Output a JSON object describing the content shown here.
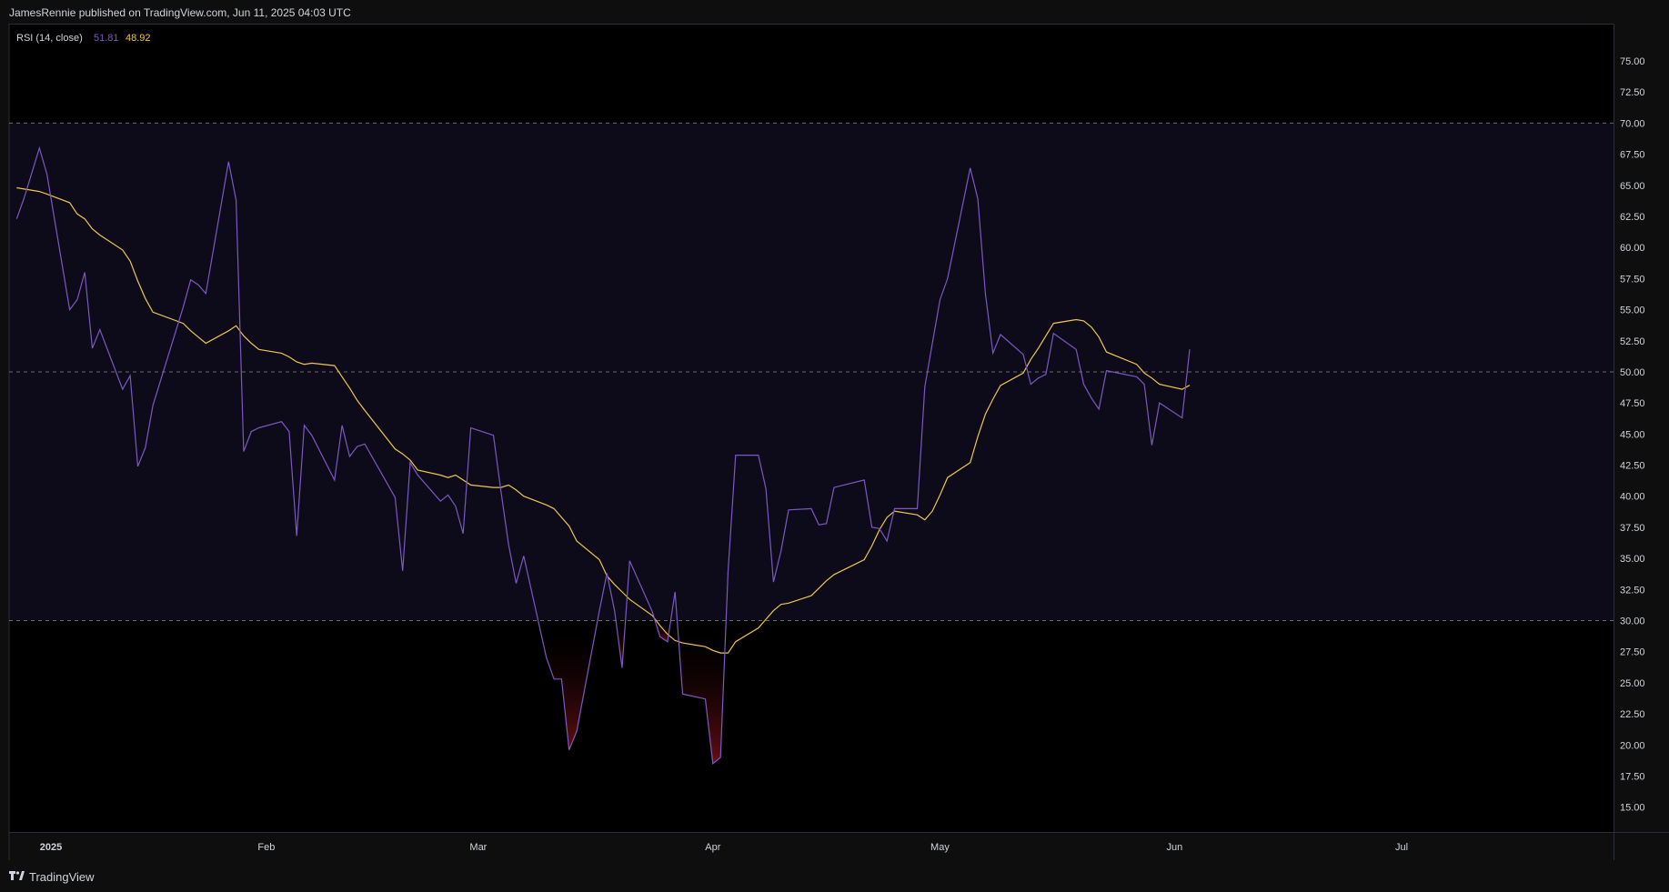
{
  "header": {
    "published": "JamesRennie published on TradingView.com, Jun 11, 2025 04:03 UTC"
  },
  "footer": {
    "brand": "TradingView"
  },
  "colors": {
    "background": "#000000",
    "band_fill": "#0d0b1a",
    "rsi_line": "#7e57c2",
    "ma_line": "#f0c64a",
    "oversold_fill": "#6e1016",
    "grid_dashed": "#6b6b6b",
    "text": "#d1d4dc"
  },
  "chart_data": {
    "type": "line",
    "indicator": "RSI (14, close)",
    "legend": {
      "label": "RSI (14, close)",
      "rsi_value": "51.81",
      "ma_value": "48.92"
    },
    "ylim": [
      13,
      78
    ],
    "y_ticks": [
      "75.00",
      "72.50",
      "70.00",
      "67.50",
      "65.00",
      "62.50",
      "60.00",
      "57.50",
      "55.00",
      "52.50",
      "50.00",
      "47.50",
      "45.00",
      "42.50",
      "40.00",
      "37.50",
      "35.00",
      "32.50",
      "30.00",
      "27.50",
      "25.00",
      "22.50",
      "20.00",
      "17.50",
      "15.00"
    ],
    "reference_lines": [
      70,
      50,
      30
    ],
    "x_ticks": [
      {
        "date": "2025-01-01",
        "label": "2025",
        "bold": true
      },
      {
        "date": "2025-02-01",
        "label": "Feb"
      },
      {
        "date": "2025-03-01",
        "label": "Mar"
      },
      {
        "date": "2025-04-01",
        "label": "Apr"
      },
      {
        "date": "2025-05-01",
        "label": "May"
      },
      {
        "date": "2025-06-01",
        "label": "Jun"
      },
      {
        "date": "2025-07-01",
        "label": "Jul"
      }
    ],
    "xlim": [
      "2024-12-29",
      "2025-07-29"
    ],
    "series": [
      {
        "name": "RSI",
        "points": [
          [
            "2024-12-30",
            62.3
          ],
          [
            "2024-12-31",
            64.0
          ],
          [
            "2025-01-02",
            68.0
          ],
          [
            "2025-01-03",
            65.9
          ],
          [
            "2025-01-06",
            55.0
          ],
          [
            "2025-01-07",
            55.8
          ],
          [
            "2025-01-08",
            58.0
          ],
          [
            "2025-01-09",
            51.9
          ],
          [
            "2025-01-10",
            53.4
          ],
          [
            "2025-01-13",
            48.6
          ],
          [
            "2025-01-14",
            49.7
          ],
          [
            "2025-01-15",
            42.4
          ],
          [
            "2025-01-16",
            43.9
          ],
          [
            "2025-01-17",
            47.3
          ],
          [
            "2025-01-21",
            55.2
          ],
          [
            "2025-01-22",
            57.4
          ],
          [
            "2025-01-23",
            57.0
          ],
          [
            "2025-01-24",
            56.3
          ],
          [
            "2025-01-27",
            66.9
          ],
          [
            "2025-01-28",
            63.8
          ],
          [
            "2025-01-29",
            43.6
          ],
          [
            "2025-01-30",
            45.2
          ],
          [
            "2025-01-31",
            45.5
          ],
          [
            "2025-02-03",
            46.0
          ],
          [
            "2025-02-04",
            45.2
          ],
          [
            "2025-02-05",
            36.8
          ],
          [
            "2025-02-06",
            45.7
          ],
          [
            "2025-02-07",
            44.9
          ],
          [
            "2025-02-10",
            41.3
          ],
          [
            "2025-02-11",
            45.7
          ],
          [
            "2025-02-12",
            43.2
          ],
          [
            "2025-02-13",
            44.0
          ],
          [
            "2025-02-14",
            44.2
          ],
          [
            "2025-02-18",
            39.9
          ],
          [
            "2025-02-19",
            34.0
          ],
          [
            "2025-02-20",
            42.7
          ],
          [
            "2025-02-21",
            41.7
          ],
          [
            "2025-02-24",
            39.6
          ],
          [
            "2025-02-25",
            40.1
          ],
          [
            "2025-02-26",
            39.2
          ],
          [
            "2025-02-27",
            37.0
          ],
          [
            "2025-02-28",
            45.5
          ],
          [
            "2025-03-03",
            44.9
          ],
          [
            "2025-03-04",
            40.4
          ],
          [
            "2025-03-05",
            36.1
          ],
          [
            "2025-03-06",
            33.0
          ],
          [
            "2025-03-07",
            35.2
          ],
          [
            "2025-03-10",
            27.0
          ],
          [
            "2025-03-11",
            25.3
          ],
          [
            "2025-03-12",
            25.3
          ],
          [
            "2025-03-13",
            19.6
          ],
          [
            "2025-03-14",
            21.1
          ],
          [
            "2025-03-17",
            30.8
          ],
          [
            "2025-03-18",
            33.8
          ],
          [
            "2025-03-19",
            30.8
          ],
          [
            "2025-03-20",
            26.2
          ],
          [
            "2025-03-21",
            34.8
          ],
          [
            "2025-03-24",
            30.7
          ],
          [
            "2025-03-25",
            28.7
          ],
          [
            "2025-03-26",
            28.3
          ],
          [
            "2025-03-27",
            32.3
          ],
          [
            "2025-03-28",
            24.1
          ],
          [
            "2025-03-31",
            23.7
          ],
          [
            "2025-04-01",
            18.5
          ],
          [
            "2025-04-02",
            19.0
          ],
          [
            "2025-04-03",
            34.0
          ],
          [
            "2025-04-04",
            43.3
          ],
          [
            "2025-04-07",
            43.3
          ],
          [
            "2025-04-08",
            40.6
          ],
          [
            "2025-04-09",
            33.1
          ],
          [
            "2025-04-10",
            35.6
          ],
          [
            "2025-04-11",
            38.9
          ],
          [
            "2025-04-14",
            39.0
          ],
          [
            "2025-04-15",
            37.7
          ],
          [
            "2025-04-16",
            37.8
          ],
          [
            "2025-04-17",
            40.7
          ],
          [
            "2025-04-21",
            41.3
          ],
          [
            "2025-04-22",
            37.5
          ],
          [
            "2025-04-23",
            37.4
          ],
          [
            "2025-04-24",
            36.4
          ],
          [
            "2025-04-25",
            39.0
          ],
          [
            "2025-04-28",
            39.0
          ],
          [
            "2025-04-29",
            48.8
          ],
          [
            "2025-04-30",
            52.3
          ],
          [
            "2025-05-01",
            55.8
          ],
          [
            "2025-05-02",
            57.5
          ],
          [
            "2025-05-05",
            66.4
          ],
          [
            "2025-05-06",
            63.9
          ],
          [
            "2025-05-07",
            56.3
          ],
          [
            "2025-05-08",
            51.5
          ],
          [
            "2025-05-09",
            53.0
          ],
          [
            "2025-05-12",
            51.4
          ],
          [
            "2025-05-13",
            49.0
          ],
          [
            "2025-05-14",
            49.5
          ],
          [
            "2025-05-15",
            49.8
          ],
          [
            "2025-05-16",
            53.1
          ],
          [
            "2025-05-19",
            51.8
          ],
          [
            "2025-05-20",
            49.0
          ],
          [
            "2025-05-21",
            47.9
          ],
          [
            "2025-05-22",
            47.0
          ],
          [
            "2025-05-23",
            50.1
          ],
          [
            "2025-05-27",
            49.6
          ],
          [
            "2025-05-28",
            49.0
          ],
          [
            "2025-05-29",
            44.1
          ],
          [
            "2025-05-30",
            47.5
          ],
          [
            "2025-06-02",
            46.3
          ],
          [
            "2025-06-03",
            51.81
          ]
        ]
      },
      {
        "name": "RSI-based MA",
        "points": [
          [
            "2024-12-30",
            64.8
          ],
          [
            "2025-01-02",
            64.5
          ],
          [
            "2025-01-03",
            64.3
          ],
          [
            "2025-01-06",
            63.6
          ],
          [
            "2025-01-07",
            62.7
          ],
          [
            "2025-01-08",
            62.3
          ],
          [
            "2025-01-09",
            61.5
          ],
          [
            "2025-01-10",
            61.0
          ],
          [
            "2025-01-13",
            59.8
          ],
          [
            "2025-01-14",
            58.9
          ],
          [
            "2025-01-15",
            57.3
          ],
          [
            "2025-01-16",
            55.9
          ],
          [
            "2025-01-17",
            54.8
          ],
          [
            "2025-01-21",
            53.9
          ],
          [
            "2025-01-22",
            53.3
          ],
          [
            "2025-01-23",
            52.8
          ],
          [
            "2025-01-24",
            52.3
          ],
          [
            "2025-01-27",
            53.3
          ],
          [
            "2025-01-28",
            53.7
          ],
          [
            "2025-01-29",
            52.9
          ],
          [
            "2025-01-30",
            52.3
          ],
          [
            "2025-01-31",
            51.8
          ],
          [
            "2025-02-03",
            51.5
          ],
          [
            "2025-02-04",
            51.2
          ],
          [
            "2025-02-05",
            50.8
          ],
          [
            "2025-02-06",
            50.6
          ],
          [
            "2025-02-07",
            50.7
          ],
          [
            "2025-02-10",
            50.5
          ],
          [
            "2025-02-11",
            49.6
          ],
          [
            "2025-02-12",
            48.7
          ],
          [
            "2025-02-13",
            47.7
          ],
          [
            "2025-02-14",
            46.9
          ],
          [
            "2025-02-18",
            43.8
          ],
          [
            "2025-02-19",
            43.4
          ],
          [
            "2025-02-20",
            42.9
          ],
          [
            "2025-02-21",
            42.1
          ],
          [
            "2025-02-24",
            41.7
          ],
          [
            "2025-02-25",
            41.5
          ],
          [
            "2025-02-26",
            41.7
          ],
          [
            "2025-02-27",
            41.3
          ],
          [
            "2025-02-28",
            40.9
          ],
          [
            "2025-03-03",
            40.7
          ],
          [
            "2025-03-04",
            40.7
          ],
          [
            "2025-03-05",
            40.9
          ],
          [
            "2025-03-06",
            40.5
          ],
          [
            "2025-03-07",
            40.0
          ],
          [
            "2025-03-10",
            39.3
          ],
          [
            "2025-03-11",
            39.0
          ],
          [
            "2025-03-12",
            38.3
          ],
          [
            "2025-03-13",
            37.6
          ],
          [
            "2025-03-14",
            36.4
          ],
          [
            "2025-03-17",
            34.9
          ],
          [
            "2025-03-18",
            33.6
          ],
          [
            "2025-03-19",
            32.9
          ],
          [
            "2025-03-20",
            32.3
          ],
          [
            "2025-03-21",
            31.7
          ],
          [
            "2025-03-24",
            30.4
          ],
          [
            "2025-03-25",
            29.6
          ],
          [
            "2025-03-26",
            28.9
          ],
          [
            "2025-03-27",
            28.4
          ],
          [
            "2025-03-28",
            28.2
          ],
          [
            "2025-03-31",
            27.9
          ],
          [
            "2025-04-01",
            27.6
          ],
          [
            "2025-04-02",
            27.4
          ],
          [
            "2025-04-03",
            27.4
          ],
          [
            "2025-04-04",
            28.3
          ],
          [
            "2025-04-07",
            29.4
          ],
          [
            "2025-04-08",
            30.1
          ],
          [
            "2025-04-09",
            30.8
          ],
          [
            "2025-04-10",
            31.3
          ],
          [
            "2025-04-11",
            31.4
          ],
          [
            "2025-04-14",
            32.0
          ],
          [
            "2025-04-15",
            32.6
          ],
          [
            "2025-04-16",
            33.2
          ],
          [
            "2025-04-17",
            33.7
          ],
          [
            "2025-04-21",
            34.9
          ],
          [
            "2025-04-22",
            36.0
          ],
          [
            "2025-04-23",
            37.3
          ],
          [
            "2025-04-24",
            38.3
          ],
          [
            "2025-04-25",
            38.8
          ],
          [
            "2025-04-28",
            38.5
          ],
          [
            "2025-04-29",
            38.1
          ],
          [
            "2025-04-30",
            38.8
          ],
          [
            "2025-05-01",
            40.1
          ],
          [
            "2025-05-02",
            41.5
          ],
          [
            "2025-05-05",
            42.7
          ],
          [
            "2025-05-06",
            44.8
          ],
          [
            "2025-05-07",
            46.6
          ],
          [
            "2025-05-08",
            47.8
          ],
          [
            "2025-05-09",
            48.9
          ],
          [
            "2025-05-12",
            49.9
          ],
          [
            "2025-05-13",
            51.0
          ],
          [
            "2025-05-14",
            51.9
          ],
          [
            "2025-05-15",
            52.9
          ],
          [
            "2025-05-16",
            53.9
          ],
          [
            "2025-05-19",
            54.2
          ],
          [
            "2025-05-20",
            54.1
          ],
          [
            "2025-05-21",
            53.6
          ],
          [
            "2025-05-22",
            52.8
          ],
          [
            "2025-05-23",
            51.6
          ],
          [
            "2025-05-27",
            50.6
          ],
          [
            "2025-05-28",
            49.9
          ],
          [
            "2025-05-29",
            49.5
          ],
          [
            "2025-05-30",
            49.0
          ],
          [
            "2025-06-02",
            48.6
          ],
          [
            "2025-06-03",
            48.92
          ]
        ]
      }
    ]
  }
}
